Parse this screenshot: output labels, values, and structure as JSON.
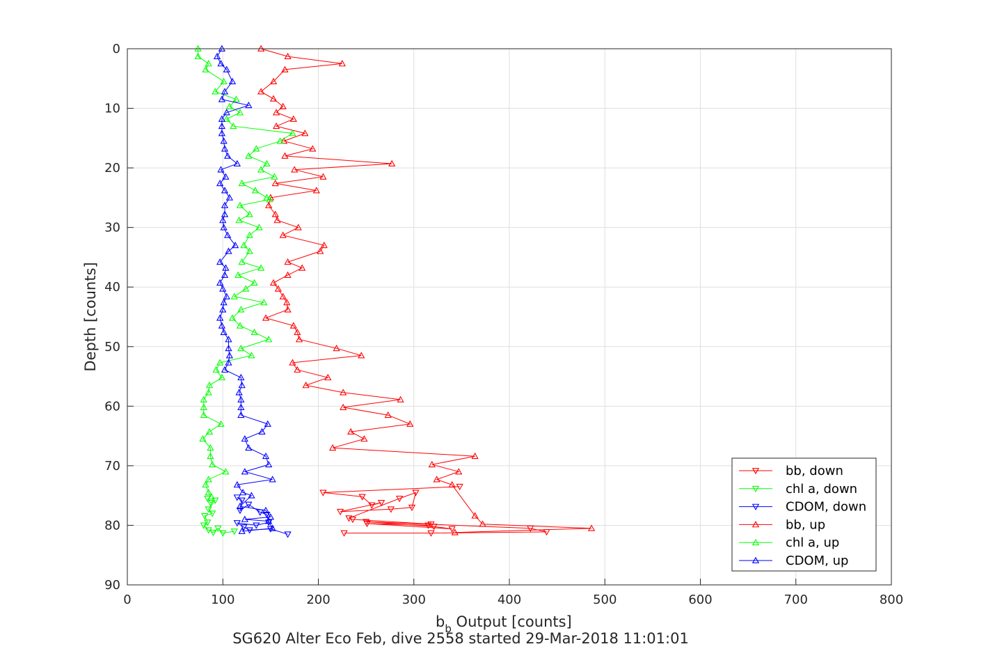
{
  "chart_data": {
    "type": "line",
    "xlabel_main": "b",
    "xlabel_sub": "b",
    "xlabel_rest": " Output [counts]",
    "ylabel": "Depth [counts]",
    "footer": "SG620 Alter Eco Feb, dive 2558 started 29-Mar-2018 11:01:01",
    "xlim": [
      0,
      800
    ],
    "ylim": [
      90,
      0
    ],
    "y_reversed": true,
    "grid": true,
    "legend_position": "lower-right",
    "xticks": [
      "0",
      "100",
      "200",
      "300",
      "400",
      "500",
      "600",
      "700",
      "800"
    ],
    "yticks": [
      "0",
      "10",
      "20",
      "30",
      "40",
      "50",
      "60",
      "70",
      "80",
      "90"
    ],
    "colors": {
      "red": "#ff0000",
      "green": "#00ff00",
      "blue": "#0000ff",
      "axis": "#262626",
      "grid": "#dfdfdf"
    },
    "series": [
      {
        "name": "bb, down",
        "color": "#ff0000",
        "marker": "triangle-down",
        "points": [
          [
            348,
            73.5
          ],
          [
            205,
            74.5
          ],
          [
            246,
            75.2
          ],
          [
            256,
            76.6
          ],
          [
            266,
            76.2
          ],
          [
            223,
            77.7
          ],
          [
            276,
            77.3
          ],
          [
            298,
            77
          ],
          [
            302,
            74.5
          ],
          [
            285,
            75.5
          ],
          [
            232,
            78.8
          ],
          [
            236,
            79
          ],
          [
            318,
            79.8
          ],
          [
            315,
            80
          ],
          [
            251,
            79.7
          ],
          [
            340,
            80.6
          ],
          [
            321,
            80.2
          ],
          [
            250,
            79.4
          ],
          [
            422,
            80.5
          ],
          [
            439,
            81.1
          ],
          [
            318,
            81.3
          ],
          [
            227,
            81.3
          ]
        ]
      },
      {
        "name": "chl a, down",
        "color": "#00ff00",
        "marker": "triangle-down",
        "points": [
          [
            84,
            75.5
          ],
          [
            87,
            76.2
          ],
          [
            92,
            75.8
          ],
          [
            85,
            77.3
          ],
          [
            89,
            78
          ],
          [
            81,
            78.4
          ],
          [
            84,
            79.5
          ],
          [
            80,
            80
          ],
          [
            85,
            80.8
          ],
          [
            90,
            81.2
          ],
          [
            95,
            80.5
          ],
          [
            100,
            81.3
          ],
          [
            112,
            81
          ]
        ]
      },
      {
        "name": "CDOM, down",
        "color": "#0000ff",
        "marker": "triangle-down",
        "points": [
          [
            115,
            75.3
          ],
          [
            120,
            75.8
          ],
          [
            118,
            77.5
          ],
          [
            127,
            76.5
          ],
          [
            139,
            77.8
          ],
          [
            146,
            78.2
          ],
          [
            148,
            79.5
          ],
          [
            135,
            80
          ],
          [
            115,
            79.6
          ],
          [
            122,
            80.3
          ],
          [
            128,
            80.8
          ],
          [
            150,
            80.6
          ],
          [
            168,
            81.5
          ]
        ]
      },
      {
        "name": "bb, up",
        "color": "#ff0000",
        "marker": "triangle-up",
        "points": [
          [
            140,
            0
          ],
          [
            168,
            1.3
          ],
          [
            225,
            2.5
          ],
          [
            165,
            3.5
          ],
          [
            153,
            5.5
          ],
          [
            140,
            7.2
          ],
          [
            153,
            8.4
          ],
          [
            163,
            9.7
          ],
          [
            156,
            10.7
          ],
          [
            174,
            11.8
          ],
          [
            156,
            13
          ],
          [
            186,
            14.2
          ],
          [
            164,
            15.5
          ],
          [
            194,
            16.8
          ],
          [
            165,
            18
          ],
          [
            277,
            19.3
          ],
          [
            175,
            20.3
          ],
          [
            205,
            21.5
          ],
          [
            155,
            22.6
          ],
          [
            198,
            23.8
          ],
          [
            150,
            25
          ],
          [
            148,
            26.3
          ],
          [
            155,
            27.8
          ],
          [
            157,
            28.8
          ],
          [
            179,
            30
          ],
          [
            163,
            31.3
          ],
          [
            206,
            33
          ],
          [
            202,
            34
          ],
          [
            168,
            35.8
          ],
          [
            183,
            36.8
          ],
          [
            168,
            38
          ],
          [
            153,
            39.3
          ],
          [
            158,
            40.3
          ],
          [
            163,
            41.6
          ],
          [
            167,
            42.6
          ],
          [
            168,
            43.8
          ],
          [
            145,
            45.2
          ],
          [
            174,
            46.5
          ],
          [
            178,
            47.6
          ],
          [
            180,
            48.8
          ],
          [
            219,
            50.3
          ],
          [
            245,
            51.5
          ],
          [
            173,
            52.7
          ],
          [
            178,
            53.9
          ],
          [
            210,
            55.2
          ],
          [
            187,
            56.5
          ],
          [
            226,
            57.7
          ],
          [
            286,
            58.9
          ],
          [
            226,
            60.2
          ],
          [
            273,
            61.5
          ],
          [
            296,
            63
          ],
          [
            234,
            64.3
          ],
          [
            248,
            65.5
          ],
          [
            215,
            67
          ],
          [
            364,
            68.4
          ],
          [
            319,
            69.8
          ],
          [
            347,
            71
          ],
          [
            324,
            72.3
          ],
          [
            340,
            73.2
          ],
          [
            364,
            78.4
          ],
          [
            372,
            79.8
          ],
          [
            486,
            80.5
          ],
          [
            343,
            81.2
          ]
        ]
      },
      {
        "name": "chl a, up",
        "color": "#00ff00",
        "marker": "triangle-up",
        "points": [
          [
            74,
            0
          ],
          [
            74,
            1.3
          ],
          [
            85,
            2.5
          ],
          [
            82,
            3.5
          ],
          [
            101,
            5.5
          ],
          [
            92,
            7.2
          ],
          [
            114,
            8.5
          ],
          [
            107,
            9.7
          ],
          [
            118,
            10.7
          ],
          [
            104,
            11.8
          ],
          [
            111,
            13
          ],
          [
            173,
            14.2
          ],
          [
            160,
            15.5
          ],
          [
            135,
            16.8
          ],
          [
            127,
            18
          ],
          [
            146,
            19.3
          ],
          [
            140,
            20.3
          ],
          [
            154,
            21.5
          ],
          [
            120,
            22.6
          ],
          [
            134,
            23.8
          ],
          [
            146,
            25
          ],
          [
            149,
            25.3
          ],
          [
            118,
            26.3
          ],
          [
            128,
            27.8
          ],
          [
            117,
            28.8
          ],
          [
            138,
            30
          ],
          [
            128,
            31.3
          ],
          [
            122,
            33
          ],
          [
            128,
            34
          ],
          [
            120,
            35.8
          ],
          [
            140,
            36.8
          ],
          [
            116,
            38
          ],
          [
            133,
            39.3
          ],
          [
            124,
            40.3
          ],
          [
            112,
            41.6
          ],
          [
            143,
            42.6
          ],
          [
            119,
            43.8
          ],
          [
            110,
            45.2
          ],
          [
            118,
            46.5
          ],
          [
            133,
            47.6
          ],
          [
            148,
            48.8
          ],
          [
            119,
            50.3
          ],
          [
            130,
            51.5
          ],
          [
            97,
            52.7
          ],
          [
            93,
            53.9
          ],
          [
            99,
            55.2
          ],
          [
            86,
            56.5
          ],
          [
            85,
            57.7
          ],
          [
            80,
            58.9
          ],
          [
            80,
            60.2
          ],
          [
            80,
            61.5
          ],
          [
            98,
            63
          ],
          [
            86,
            64.3
          ],
          [
            79,
            65.5
          ],
          [
            87,
            67
          ],
          [
            87,
            68.4
          ],
          [
            89,
            69.8
          ],
          [
            103,
            71
          ],
          [
            85,
            72.3
          ],
          [
            82,
            73.2
          ],
          [
            85,
            74.5
          ],
          [
            88,
            75.2
          ]
        ]
      },
      {
        "name": "CDOM, up",
        "color": "#0000ff",
        "marker": "triangle-up",
        "points": [
          [
            99,
            0
          ],
          [
            94,
            1.3
          ],
          [
            98,
            2.5
          ],
          [
            104,
            3.5
          ],
          [
            110,
            5.5
          ],
          [
            102,
            7.2
          ],
          [
            99,
            8.5
          ],
          [
            127,
            9.5
          ],
          [
            104,
            10.7
          ],
          [
            99,
            11.8
          ],
          [
            99,
            13
          ],
          [
            99,
            14.2
          ],
          [
            101,
            15.5
          ],
          [
            102,
            16.8
          ],
          [
            105,
            18
          ],
          [
            115,
            19.3
          ],
          [
            98,
            20.3
          ],
          [
            103,
            21.5
          ],
          [
            97,
            22.6
          ],
          [
            102,
            23.8
          ],
          [
            107,
            25
          ],
          [
            102,
            26.3
          ],
          [
            102,
            27.8
          ],
          [
            100,
            28.8
          ],
          [
            101,
            30
          ],
          [
            105,
            31.3
          ],
          [
            113,
            33
          ],
          [
            106,
            34
          ],
          [
            97,
            35.8
          ],
          [
            103,
            36.8
          ],
          [
            102,
            38
          ],
          [
            97,
            39.3
          ],
          [
            100,
            40.3
          ],
          [
            104,
            41.6
          ],
          [
            101,
            42.6
          ],
          [
            100,
            43.8
          ],
          [
            97,
            45.2
          ],
          [
            99,
            46.5
          ],
          [
            101,
            47.6
          ],
          [
            106,
            48.8
          ],
          [
            106,
            50.3
          ],
          [
            107,
            51.5
          ],
          [
            106,
            52.7
          ],
          [
            102,
            53.9
          ],
          [
            119,
            55.2
          ],
          [
            120,
            56.5
          ],
          [
            117,
            57.7
          ],
          [
            119,
            58.9
          ],
          [
            119,
            60.2
          ],
          [
            119,
            61.5
          ],
          [
            147,
            63
          ],
          [
            141,
            64.3
          ],
          [
            123,
            65.5
          ],
          [
            127,
            67
          ],
          [
            145,
            68.4
          ],
          [
            148,
            69.8
          ],
          [
            123,
            71
          ],
          [
            152,
            72.3
          ],
          [
            115,
            73.2
          ],
          [
            121,
            74.5
          ],
          [
            130,
            75
          ],
          [
            118,
            76.8
          ],
          [
            145,
            77.5
          ],
          [
            150,
            78.6
          ],
          [
            123,
            79
          ],
          [
            148,
            79.3
          ],
          [
            152,
            80.5
          ],
          [
            120,
            81
          ]
        ]
      }
    ]
  }
}
